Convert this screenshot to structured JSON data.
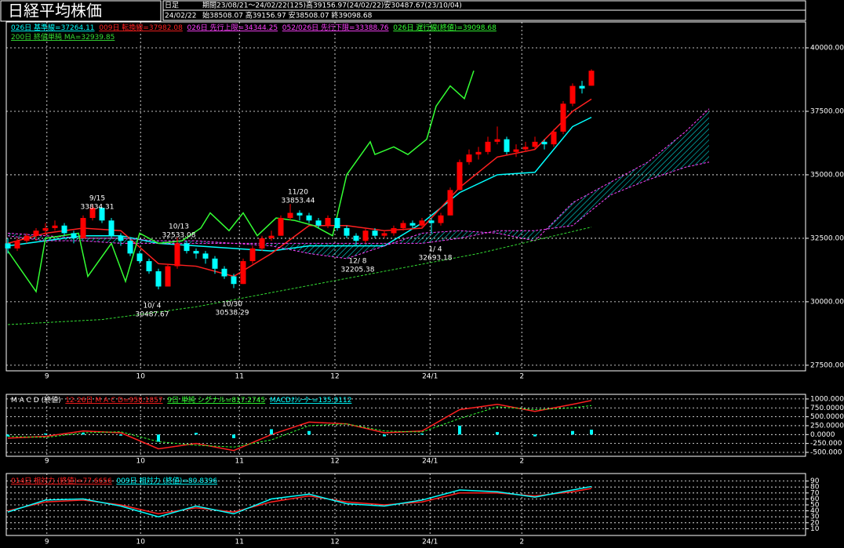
{
  "chart_data": [
    {
      "type": "candlestick",
      "title": "日経平均株価",
      "period_label": "日足",
      "period": "期間23/08/21～24/02/22(125)高39156.97(24/02/22)安30487.67(23/10/04)",
      "date": "24/02/22",
      "ohlc": "始38508.07 高39156.97 安38508.07 終39098.68",
      "xlim": [
        0,
        169.5
      ],
      "xticks": [
        {
          "value": 8.3,
          "label": "9"
        },
        {
          "value": 28.2,
          "label": "10"
        },
        {
          "value": 49.2,
          "label": "11"
        },
        {
          "value": 69.5,
          "label": "12"
        },
        {
          "value": 89.7,
          "label": "24/1"
        },
        {
          "value": 109.2,
          "label": "2"
        }
      ],
      "ylim": [
        27280,
        40340
      ],
      "yticks": [
        {
          "value": 27500,
          "label": "27500.00"
        },
        {
          "value": 30000,
          "label": "30000.00"
        },
        {
          "value": 32500,
          "label": "32500.00"
        },
        {
          "value": 35000,
          "label": "35000.00"
        },
        {
          "value": 37500,
          "label": "37500.00"
        },
        {
          "value": 40000,
          "label": "40000.00"
        }
      ],
      "grid": true,
      "up_color": "#ff0000",
      "down_color": "#00ffff",
      "candles": {
        "x": [
          0,
          2,
          4,
          6,
          8,
          10,
          12,
          14,
          16,
          18,
          20,
          22,
          24,
          26,
          28,
          30,
          32,
          34,
          36,
          38,
          40,
          42,
          44,
          46,
          48,
          50,
          52,
          54,
          56,
          58,
          60,
          62,
          64,
          66,
          68,
          70,
          72,
          74,
          76,
          78,
          80,
          82,
          84,
          86,
          88,
          90,
          92,
          94,
          96,
          98,
          100,
          102,
          104,
          106,
          108,
          110,
          112,
          114,
          116,
          118,
          120,
          122,
          124
        ],
        "open": [
          32300,
          32100,
          32400,
          32600,
          32800,
          32900,
          33000,
          32700,
          32500,
          33300,
          33700,
          33200,
          32600,
          32400,
          31900,
          31600,
          31200,
          30600,
          31400,
          32300,
          32000,
          31900,
          31700,
          31300,
          31000,
          30700,
          31600,
          32100,
          32500,
          32600,
          33300,
          33500,
          33400,
          33200,
          33000,
          33300,
          32900,
          32600,
          32400,
          32800,
          32600,
          32700,
          32900,
          33100,
          33000,
          33200,
          33100,
          33400,
          34400,
          35500,
          35800,
          35900,
          36300,
          36400,
          35900,
          36000,
          36100,
          36300,
          36200,
          36700,
          37800,
          38500,
          38508.07
        ],
        "high": [
          32500,
          32500,
          32700,
          32900,
          33100,
          33200,
          33100,
          32800,
          33400,
          33834.31,
          33700,
          33300,
          32700,
          32500,
          32000,
          31700,
          31300,
          31500,
          32533.08,
          32400,
          32100,
          32000,
          31800,
          31400,
          31100,
          31700,
          32200,
          32600,
          32800,
          33400,
          33853.44,
          33600,
          33500,
          33300,
          33400,
          33300,
          33000,
          32700,
          32900,
          32900,
          32800,
          33000,
          33200,
          33200,
          33300,
          33300,
          33500,
          34500,
          35600,
          36000,
          36100,
          36500,
          36900,
          36500,
          36200,
          36300,
          36500,
          36400,
          36800,
          37900,
          38600,
          38700,
          39156.97
        ],
        "low": [
          31900,
          32000,
          32300,
          32400,
          32600,
          32800,
          32600,
          32300,
          32500,
          33200,
          33100,
          32500,
          32200,
          31800,
          31500,
          31100,
          30487.67,
          30600,
          31300,
          31900,
          31700,
          31500,
          31100,
          30900,
          30538.29,
          30700,
          31500,
          32000,
          32400,
          32600,
          33200,
          33200,
          33100,
          32900,
          32900,
          32800,
          32500,
          32205.38,
          32300,
          32500,
          32500,
          32600,
          32800,
          32900,
          32900,
          32693.18,
          33000,
          33400,
          34400,
          35400,
          35600,
          35800,
          36200,
          35800,
          35700,
          35900,
          36000,
          36000,
          36100,
          36600,
          37700,
          38200,
          38508.07
        ],
        "close": [
          32100,
          32400,
          32600,
          32800,
          32900,
          33000,
          32700,
          32500,
          33300,
          33700,
          33200,
          32600,
          32400,
          31900,
          31600,
          31200,
          30600,
          31400,
          32300,
          32000,
          31900,
          31700,
          31300,
          31000,
          30700,
          31600,
          32100,
          32500,
          32600,
          33300,
          33500,
          33400,
          33200,
          33000,
          33300,
          32900,
          32600,
          32400,
          32800,
          32600,
          32700,
          32900,
          33100,
          33000,
          33200,
          33100,
          33400,
          34400,
          35500,
          35800,
          35900,
          36300,
          36400,
          35900,
          36000,
          36100,
          36300,
          36200,
          36700,
          37800,
          38500,
          38400,
          39098.68
        ]
      },
      "series": [
        {
          "name": "026日 基準線=37264.11",
          "color": "#00ffff",
          "x": [
            0,
            8,
            16,
            24,
            32,
            40,
            48,
            56,
            64,
            72,
            80,
            88,
            96,
            104,
            112,
            120,
            124
          ],
          "values": [
            32200,
            32400,
            32600,
            32600,
            32300,
            32200,
            32100,
            32000,
            32200,
            32200,
            32200,
            33100,
            34300,
            35000,
            35100,
            36900,
            37264.11
          ]
        },
        {
          "name": "009日 転換線=37982.08",
          "color": "#ff2020",
          "x": [
            0,
            8,
            16,
            24,
            32,
            40,
            48,
            56,
            64,
            72,
            80,
            88,
            96,
            104,
            112,
            120,
            124
          ],
          "values": [
            32300,
            32700,
            32900,
            32800,
            31500,
            31400,
            31000,
            31900,
            33000,
            33000,
            32800,
            32900,
            34500,
            35700,
            36000,
            37500,
            37982.08
          ]
        },
        {
          "name": "026日 先行上限=34344.25",
          "color": "#ff40ff",
          "dash": true,
          "cloud": true,
          "x": [
            0,
            8,
            16,
            24,
            32,
            40,
            48,
            56,
            64,
            72,
            80,
            88,
            96,
            104,
            112,
            120,
            128,
            136,
            144,
            149
          ],
          "values": [
            32700,
            32600,
            32500,
            32500,
            32400,
            32400,
            32300,
            32200,
            31900,
            31700,
            32200,
            32700,
            32800,
            32700,
            32400,
            33900,
            34700,
            35500,
            36700,
            37600
          ]
        },
        {
          "name": "052/026日 先行下限=33388.76",
          "color": "#ff40ff",
          "dash": true,
          "cloud": true,
          "x": [
            0,
            8,
            16,
            24,
            32,
            40,
            48,
            56,
            64,
            72,
            80,
            88,
            96,
            104,
            112,
            120,
            128,
            136,
            144,
            149
          ],
          "values": [
            32600,
            32400,
            32400,
            32300,
            32300,
            32300,
            32300,
            32300,
            32300,
            32300,
            32300,
            32300,
            32500,
            32800,
            32800,
            33000,
            34200,
            34800,
            35300,
            35500
          ]
        },
        {
          "name": "026日 遅行線(終値)=39098.68",
          "color": "#33ff33",
          "x": [
            0,
            6,
            8,
            15,
            17,
            22,
            25,
            28,
            32,
            37,
            41,
            43,
            47,
            50,
            53,
            57,
            61,
            65,
            69,
            72,
            77,
            78,
            82,
            85,
            89,
            91,
            94,
            97,
            99
          ],
          "values": [
            32000,
            30400,
            32500,
            32700,
            31000,
            32300,
            30800,
            32700,
            32300,
            32400,
            32900,
            33500,
            32800,
            33500,
            32600,
            33300,
            33200,
            33000,
            32600,
            35000,
            36300,
            35800,
            36100,
            35800,
            36400,
            37700,
            38500,
            38000,
            39098.68
          ]
        },
        {
          "name": "200日 終値単純 MA=32939.85",
          "color": "#33dd33",
          "dash": true,
          "x": [
            0,
            20,
            40,
            60,
            80,
            100,
            124
          ],
          "values": [
            29100,
            29300,
            29800,
            30500,
            31200,
            31900,
            32939.85
          ]
        }
      ],
      "cloud_color": "#00ffff",
      "annotations": [
        {
          "date": "9/15",
          "price": "33834.31",
          "kind": "high"
        },
        {
          "date": "10/13",
          "price": "32533.08",
          "kind": "high"
        },
        {
          "date": "11/20",
          "price": "33853.44",
          "kind": "high"
        },
        {
          "date": "10/ 4",
          "price": "30487.67",
          "kind": "low"
        },
        {
          "date": "10/30",
          "price": "30538.29",
          "kind": "low"
        },
        {
          "date": "12/ 8",
          "price": "32205.38",
          "kind": "low"
        },
        {
          "date": "1/ 4",
          "price": "32693.18",
          "kind": "low"
        }
      ]
    },
    {
      "type": "line",
      "title": "M A C D (終値)",
      "xlim": [
        0,
        169.5
      ],
      "xticks": [
        {
          "value": 8.3,
          "label": "9"
        },
        {
          "value": 28.2,
          "label": "10"
        },
        {
          "value": 49.2,
          "label": "11"
        },
        {
          "value": 69.5,
          "label": "12"
        },
        {
          "value": 89.7,
          "label": "24/1"
        },
        {
          "value": 109.2,
          "label": "2"
        }
      ],
      "ylim": [
        -610,
        1130
      ],
      "yticks": [
        {
          "value": -500,
          "label": "-500.000"
        },
        {
          "value": -250,
          "label": "-250.000"
        },
        {
          "value": 0,
          "label": "0.0000"
        },
        {
          "value": 250,
          "label": "250.0000"
        },
        {
          "value": 500,
          "label": "500.0000"
        },
        {
          "value": 750,
          "label": "750.0000"
        },
        {
          "value": 1000,
          "label": "1000.000"
        }
      ],
      "grid": true,
      "series": [
        {
          "name": "12-26日 M A C D=958.1857",
          "color": "#ff2020",
          "x": [
            0,
            8,
            16,
            24,
            32,
            40,
            48,
            56,
            64,
            72,
            80,
            88,
            96,
            104,
            112,
            120,
            124
          ],
          "values": [
            -100,
            -50,
            100,
            50,
            -400,
            -250,
            -450,
            0,
            350,
            300,
            50,
            100,
            700,
            850,
            650,
            850,
            958.1857
          ]
        },
        {
          "name": "9日 単純 シグナル=817.2745",
          "color": "#33ff33",
          "dash": true,
          "x": [
            0,
            8,
            16,
            24,
            32,
            40,
            48,
            56,
            64,
            72,
            80,
            88,
            96,
            104,
            112,
            120,
            124
          ],
          "values": [
            -50,
            -80,
            50,
            80,
            -200,
            -300,
            -350,
            -150,
            250,
            300,
            100,
            70,
            450,
            780,
            700,
            750,
            817.2745
          ]
        },
        {
          "name": "MACDｵｼﾚｰﾀｰ=135.9112",
          "color": "#00ffff",
          "bars": true,
          "x": [
            0,
            8,
            16,
            24,
            32,
            40,
            48,
            56,
            64,
            72,
            80,
            88,
            96,
            104,
            112,
            120,
            124
          ],
          "values": [
            -50,
            30,
            50,
            -30,
            -200,
            50,
            -100,
            150,
            100,
            0,
            -50,
            30,
            250,
            70,
            -50,
            100,
            135.9112
          ]
        }
      ]
    },
    {
      "type": "line",
      "xlim": [
        0,
        169.5
      ],
      "xticks": [
        {
          "value": 8.3,
          "label": "9"
        },
        {
          "value": 28.2,
          "label": "10"
        },
        {
          "value": 49.2,
          "label": "11"
        },
        {
          "value": 69.5,
          "label": "12"
        },
        {
          "value": 89.7,
          "label": "24/1"
        },
        {
          "value": 109.2,
          "label": "2"
        }
      ],
      "ylim": [
        0,
        100
      ],
      "yticks": [
        10,
        20,
        30,
        40,
        50,
        60,
        70,
        80,
        90
      ],
      "grid": true,
      "series": [
        {
          "name": "014日 相対力 (終値)=77.6656",
          "color": "#ff2020",
          "x": [
            0,
            8,
            16,
            24,
            32,
            40,
            48,
            56,
            64,
            72,
            80,
            88,
            96,
            104,
            112,
            120,
            124
          ],
          "values": [
            40,
            55,
            58,
            50,
            35,
            45,
            38,
            55,
            65,
            55,
            50,
            55,
            70,
            70,
            65,
            72,
            77.6656
          ]
        },
        {
          "name": "009日 相対力 (終値)=80.8396",
          "color": "#00ffff",
          "x": [
            0,
            8,
            16,
            24,
            32,
            40,
            48,
            56,
            64,
            72,
            80,
            88,
            96,
            104,
            112,
            120,
            124
          ],
          "values": [
            38,
            58,
            60,
            48,
            30,
            48,
            35,
            60,
            68,
            52,
            48,
            58,
            75,
            72,
            63,
            75,
            80.8396
          ]
        }
      ]
    }
  ]
}
